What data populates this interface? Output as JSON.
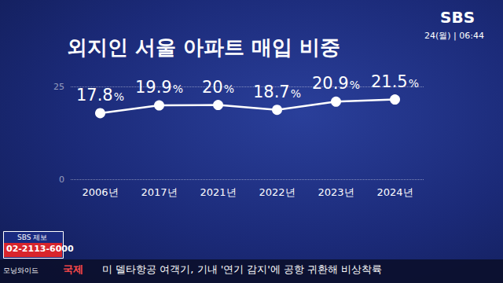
{
  "chart_data": {
    "type": "line",
    "title": "외지인 서울 아파트 매입 비중",
    "categories": [
      "2006년",
      "2017년",
      "2021년",
      "2022년",
      "2023년",
      "2024년"
    ],
    "values": [
      17.8,
      19.9,
      20,
      18.7,
      20.9,
      21.5
    ],
    "value_labels": [
      "17.8%",
      "19.9%",
      "20%",
      "18.7%",
      "20.9%",
      "21.5%"
    ],
    "data_labels": true,
    "color": "#ffffff",
    "marker": "circle",
    "ylim": [
      0,
      25
    ],
    "yticks": [
      0,
      25
    ],
    "grid": true,
    "annotations": [
      "SBS",
      "24(월) | 06:44",
      "SBS 제보",
      "02-2113-6000",
      "모닝와이드",
      "국제",
      "미 델타항공 여객기, 기내 '연기 감지'에 공항 귀환해 비상착륙"
    ]
  }
}
